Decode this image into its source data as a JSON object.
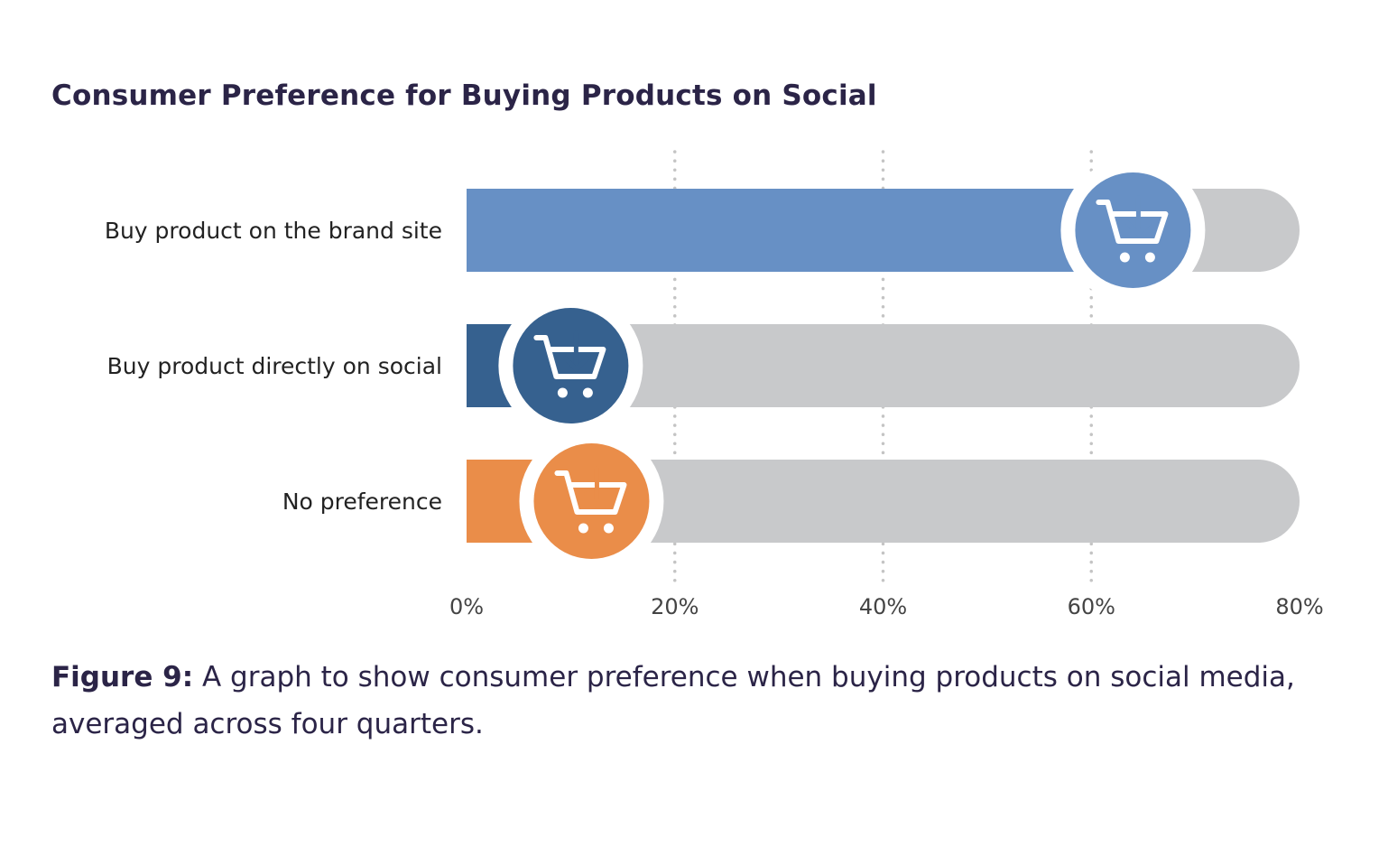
{
  "chart_data": {
    "type": "bar",
    "orientation": "horizontal",
    "title": "Consumer Preference for Buying Products on Social",
    "categories": [
      "Buy product on the brand site",
      "Buy product directly on social",
      "No preference"
    ],
    "values": [
      64,
      10,
      12
    ],
    "unit": "%",
    "xlim": [
      0,
      80
    ],
    "xticks": [
      "0%",
      "20%",
      "40%",
      "60%",
      "80%"
    ],
    "tick_values": [
      0,
      20,
      40,
      60,
      80
    ],
    "grid": "vertical dotted",
    "bar_colors": [
      "#6790c5",
      "#36618f",
      "#ea8d49"
    ],
    "track_color": "#c8c9cb",
    "marker_icon": "shopping-cart-download-icon"
  },
  "caption": {
    "label": "Figure 9:",
    "text": " A graph to show consumer preference when buying products on social media, averaged across four quarters."
  }
}
